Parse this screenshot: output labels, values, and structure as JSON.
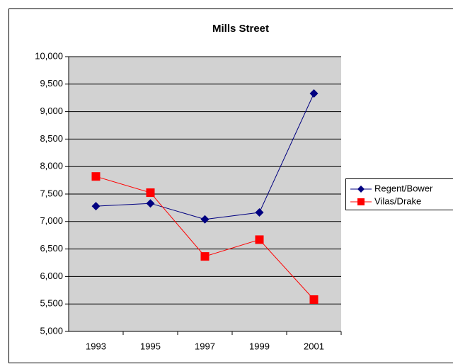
{
  "chart_data": {
    "type": "line",
    "title": "Mills Street",
    "categories": [
      "1993",
      "1995",
      "1997",
      "1999",
      "2001"
    ],
    "series": [
      {
        "name": "Regent/Bower",
        "color": "#000080",
        "marker": "diamond",
        "values": [
          7280,
          7330,
          7040,
          7165,
          9330
        ]
      },
      {
        "name": "Vilas/Drake",
        "color": "#ff0000",
        "marker": "square",
        "values": [
          7820,
          7525,
          6365,
          6670,
          5580
        ]
      }
    ],
    "ylim": [
      5000,
      10000
    ],
    "yticks": [
      {
        "value": 5000,
        "label": "5,000"
      },
      {
        "value": 5500,
        "label": "5,500"
      },
      {
        "value": 6000,
        "label": "6,000"
      },
      {
        "value": 6500,
        "label": "6,500"
      },
      {
        "value": 7000,
        "label": "7,000"
      },
      {
        "value": 7500,
        "label": "7,500"
      },
      {
        "value": 8000,
        "label": "8,000"
      },
      {
        "value": 8500,
        "label": "8,500"
      },
      {
        "value": 9000,
        "label": "9,000"
      },
      {
        "value": 9500,
        "label": "9,500"
      },
      {
        "value": 10000,
        "label": "10,000"
      }
    ],
    "grid": true,
    "legend": "right"
  }
}
